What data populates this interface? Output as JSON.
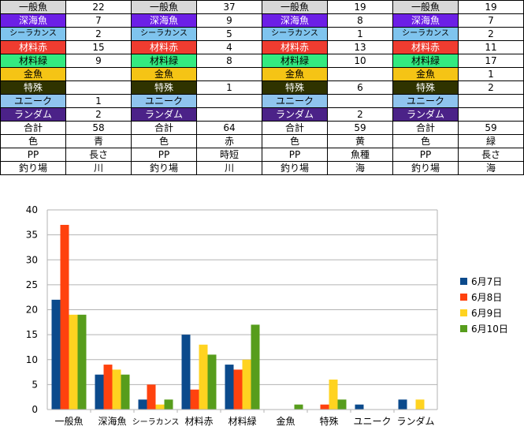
{
  "colors": {
    "一般魚": "#d8d8d8",
    "深海魚": "#6c1fe6",
    "シーラカンス": "#7fc4ee",
    "材料赤": "#ef3c30",
    "材料緑": "#33ea80",
    "金魚": "#f5c415",
    "特殊": "#2f3300",
    "ユニーク": "#8fc4ee",
    "ランダム": "#4b2288",
    "white": "#ffffff"
  },
  "table": {
    "rows": [
      {
        "label": "一般魚",
        "values": [
          "22",
          "37",
          "19",
          "19"
        ]
      },
      {
        "label": "深海魚",
        "values": [
          "7",
          "9",
          "8",
          "7"
        ]
      },
      {
        "label": "シーラカンス",
        "values": [
          "2",
          "5",
          "1",
          "2"
        ]
      },
      {
        "label": "材料赤",
        "values": [
          "15",
          "4",
          "13",
          "11"
        ]
      },
      {
        "label": "材料緑",
        "values": [
          "9",
          "8",
          "10",
          "17"
        ]
      },
      {
        "label": "金魚",
        "values": [
          "",
          "",
          "",
          "1"
        ]
      },
      {
        "label": "特殊",
        "values": [
          "",
          "1",
          "6",
          "2"
        ]
      },
      {
        "label": "ユニーク",
        "values": [
          "1",
          "",
          "",
          ""
        ]
      },
      {
        "label": "ランダム",
        "values": [
          "2",
          "",
          "2",
          ""
        ]
      },
      {
        "label": "合計",
        "values": [
          "58",
          "64",
          "59",
          "59"
        ]
      },
      {
        "label": "色",
        "values": [
          "青",
          "赤",
          "黄",
          "緑"
        ]
      },
      {
        "label": "PP",
        "values": [
          "長さ",
          "時短",
          "魚種",
          "長さ"
        ]
      },
      {
        "label": "釣り場",
        "values": [
          "川",
          "川",
          "海",
          "海"
        ]
      }
    ]
  },
  "chart_data": {
    "type": "bar",
    "categories": [
      "一般魚",
      "深海魚",
      "シーラカンス",
      "材料赤",
      "材料緑",
      "金魚",
      "特殊",
      "ユニーク",
      "ランダム"
    ],
    "series": [
      {
        "name": "6月7日",
        "color": "#0b4a8c",
        "values": [
          22,
          7,
          2,
          15,
          9,
          0,
          0,
          1,
          2
        ]
      },
      {
        "name": "6月8日",
        "color": "#ff420e",
        "values": [
          37,
          9,
          5,
          4,
          8,
          0,
          1,
          0,
          0
        ]
      },
      {
        "name": "6月9日",
        "color": "#ffd320",
        "values": [
          19,
          8,
          1,
          13,
          10,
          0,
          6,
          0,
          2
        ]
      },
      {
        "name": "6月10日",
        "color": "#579d1c",
        "values": [
          19,
          7,
          2,
          11,
          17,
          1,
          2,
          0,
          0
        ]
      }
    ],
    "ylim": [
      0,
      40
    ],
    "yticks": [
      "0",
      "5",
      "10",
      "15",
      "20",
      "25",
      "30",
      "35",
      "40"
    ],
    "grid": true,
    "legend_position": "right"
  }
}
